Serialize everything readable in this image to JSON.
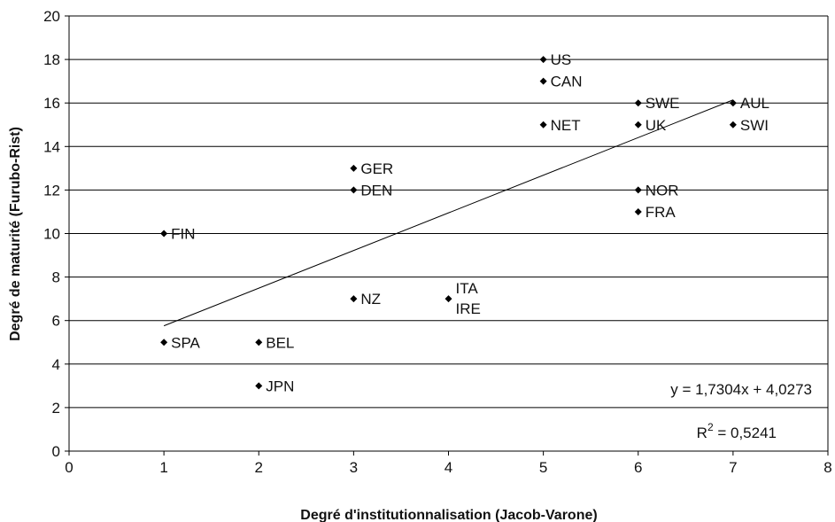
{
  "chart_data": {
    "type": "scatter",
    "title": "",
    "xlabel": "Degré d'institutionnalisation (Jacob-Varone)",
    "ylabel": "Degré de maturité (Furubo-Rist)",
    "xlim": [
      0,
      8
    ],
    "ylim": [
      0,
      20
    ],
    "x_ticks": [
      0,
      1,
      2,
      3,
      4,
      5,
      6,
      7,
      8
    ],
    "y_ticks": [
      0,
      2,
      4,
      6,
      8,
      10,
      12,
      14,
      16,
      18,
      20
    ],
    "grid": "horizontal",
    "legend": "none",
    "marker_color": "#000000",
    "points": [
      {
        "label": "US",
        "x": 5,
        "y": 18
      },
      {
        "label": "CAN",
        "x": 5,
        "y": 17
      },
      {
        "label": "SWE",
        "x": 6,
        "y": 16
      },
      {
        "label": "AUL",
        "x": 7,
        "y": 16
      },
      {
        "label": "NET",
        "x": 5,
        "y": 15
      },
      {
        "label": "UK",
        "x": 6,
        "y": 15
      },
      {
        "label": "SWI",
        "x": 7,
        "y": 15
      },
      {
        "label": "GER",
        "x": 3,
        "y": 13
      },
      {
        "label": "DEN",
        "x": 3,
        "y": 12
      },
      {
        "label": "NOR",
        "x": 6,
        "y": 12
      },
      {
        "label": "FRA",
        "x": 6,
        "y": 11
      },
      {
        "label": "FIN",
        "x": 1,
        "y": 10
      },
      {
        "label": "NZ",
        "x": 3,
        "y": 7
      },
      {
        "label": "ITA",
        "x": 4,
        "y": 7
      },
      {
        "label": "IRE",
        "x": 4,
        "y": 7
      },
      {
        "label": "SPA",
        "x": 1,
        "y": 5
      },
      {
        "label": "BEL",
        "x": 2,
        "y": 5
      },
      {
        "label": "JPN",
        "x": 2,
        "y": 3
      }
    ],
    "trendline": {
      "type": "linear",
      "slope": 1.7304,
      "intercept": 4.0273,
      "x_range": [
        1,
        7
      ],
      "equation_label": "y = 1,7304x + 4,0273",
      "r2_prefix": "R",
      "r2_sup": "2",
      "r2_value": " = 0,5241"
    }
  }
}
